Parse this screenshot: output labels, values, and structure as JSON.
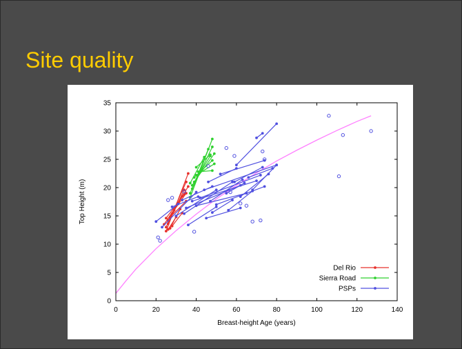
{
  "slide": {
    "title": "Site quality"
  },
  "chart_data": {
    "type": "scatter",
    "xlabel": "Breast-height Age (years)",
    "ylabel": "Top Height (m)",
    "xlim": [
      0,
      140
    ],
    "ylim": [
      0,
      35
    ],
    "x_ticks": [
      0,
      20,
      40,
      60,
      80,
      100,
      120,
      140
    ],
    "y_ticks": [
      0,
      5,
      10,
      15,
      20,
      25,
      30,
      35
    ],
    "grid": false,
    "legend_position": "bottom-right",
    "colors": {
      "Del Rio": "#e8312c",
      "Sierra Road": "#2fd12f",
      "PSPs": "#5050e0",
      "curve": "#ff80ff"
    },
    "curve": {
      "x": [
        0,
        5,
        10,
        20,
        30,
        40,
        50,
        60,
        70,
        80,
        90,
        100,
        110,
        120,
        127
      ],
      "y": [
        1.3,
        3.5,
        5.6,
        9.2,
        12.4,
        15.3,
        18.0,
        20.4,
        22.6,
        24.7,
        26.6,
        28.4,
        30.1,
        31.7,
        32.7
      ]
    },
    "series": [
      {
        "name": "Del Rio",
        "segments": [
          [
            [
              25,
              12.3
            ],
            [
              36,
              22.5
            ]
          ],
          [
            [
              25,
              13.0
            ],
            [
              35,
              21.0
            ]
          ],
          [
            [
              26,
              13.6
            ],
            [
              34,
              19.6
            ]
          ],
          [
            [
              26,
              14.2
            ],
            [
              33,
              18.5
            ]
          ],
          [
            [
              27,
              14.8
            ],
            [
              35,
              17.6
            ]
          ],
          [
            [
              27,
              12.8
            ],
            [
              32,
              16.2
            ]
          ],
          [
            [
              28,
              15.4
            ],
            [
              36,
              20.2
            ]
          ],
          [
            [
              24,
              13.5
            ],
            [
              31,
              17.2
            ]
          ],
          [
            [
              25,
              14.6
            ],
            [
              34,
              18.8
            ]
          ],
          [
            [
              28,
              13.2
            ],
            [
              33,
              15.5
            ]
          ],
          [
            [
              26,
              12.6
            ],
            [
              30,
              14.8
            ]
          ],
          [
            [
              29,
              16.0
            ],
            [
              35,
              19.0
            ]
          ]
        ]
      },
      {
        "name": "Sierra Road",
        "segments": [
          [
            [
              37,
              18.3
            ],
            [
              48,
              28.6
            ]
          ],
          [
            [
              37,
              19.0
            ],
            [
              46,
              26.8
            ]
          ],
          [
            [
              38,
              19.8
            ],
            [
              48,
              27.2
            ]
          ],
          [
            [
              38,
              20.4
            ],
            [
              47,
              25.6
            ]
          ],
          [
            [
              39,
              21.0
            ],
            [
              49,
              26.0
            ]
          ],
          [
            [
              39,
              21.8
            ],
            [
              48,
              24.8
            ]
          ],
          [
            [
              40,
              22.2
            ],
            [
              49,
              24.2
            ]
          ],
          [
            [
              41,
              22.8
            ],
            [
              48,
              23.0
            ]
          ],
          [
            [
              37,
              20.8
            ],
            [
              44,
              25.4
            ]
          ],
          [
            [
              40,
              23.6
            ],
            [
              47,
              25.8
            ]
          ]
        ]
      },
      {
        "name": "PSPs",
        "segments": [
          [
            [
              20,
              14.0
            ],
            [
              31,
              17.1
            ]
          ],
          [
            [
              23,
              13.0
            ],
            [
              40,
              19.2
            ]
          ],
          [
            [
              30,
              15.0
            ],
            [
              50,
              19.6
            ]
          ],
          [
            [
              34,
              15.4
            ],
            [
              58,
              21.0
            ]
          ],
          [
            [
              35,
              16.4
            ],
            [
              62,
              20.4
            ]
          ],
          [
            [
              38,
              17.6
            ],
            [
              70,
              21.2
            ]
          ],
          [
            [
              40,
              16.8
            ],
            [
              65,
              19.0
            ]
          ],
          [
            [
              42,
              18.2
            ],
            [
              72,
              22.2
            ]
          ],
          [
            [
              44,
              19.6
            ],
            [
              80,
              24.0
            ]
          ],
          [
            [
              45,
              14.6
            ],
            [
              62,
              16.4
            ]
          ],
          [
            [
              46,
              21.0
            ],
            [
              60,
              23.4
            ]
          ],
          [
            [
              48,
              15.6
            ],
            [
              58,
              17.8
            ]
          ],
          [
            [
              50,
              17.0
            ],
            [
              74,
              20.2
            ]
          ],
          [
            [
              52,
              22.4
            ],
            [
              74,
              24.8
            ]
          ],
          [
            [
              55,
              19.0
            ],
            [
              64,
              20.8
            ]
          ],
          [
            [
              60,
              24.0
            ],
            [
              80,
              31.3
            ]
          ],
          [
            [
              66,
              21.8
            ],
            [
              78,
              23.4
            ]
          ],
          [
            [
              68,
              19.6
            ],
            [
              80,
              24.0
            ]
          ],
          [
            [
              70,
              28.8
            ],
            [
              73,
              29.6
            ]
          ],
          [
            [
              36,
              13.4
            ],
            [
              50,
              16.6
            ]
          ],
          [
            [
              56,
              16.0
            ],
            [
              68,
              19.4
            ]
          ],
          [
            [
              28,
              16.6
            ],
            [
              41,
              18.4
            ]
          ],
          [
            [
              47,
              17.6
            ],
            [
              63,
              21.4
            ]
          ],
          [
            [
              59,
              21.0
            ],
            [
              73,
              23.6
            ]
          ],
          [
            [
              33,
              17.8
            ],
            [
              48,
              20.2
            ]
          ],
          [
            [
              62,
              18.4
            ],
            [
              76,
              22.4
            ]
          ]
        ],
        "points": [
          [
            21,
            11.2
          ],
          [
            22,
            10.6
          ],
          [
            26,
            17.8
          ],
          [
            28,
            18.2
          ],
          [
            34,
            19.3
          ],
          [
            39,
            12.2
          ],
          [
            55,
            27.0
          ],
          [
            57,
            19.2
          ],
          [
            59,
            25.6
          ],
          [
            62,
            17.2
          ],
          [
            68,
            14.0
          ],
          [
            72,
            14.2
          ],
          [
            73,
            26.4
          ],
          [
            74,
            25.0
          ],
          [
            106,
            32.7
          ],
          [
            111,
            22.0
          ],
          [
            113,
            29.3
          ],
          [
            127,
            30.0
          ],
          [
            46,
            23.8
          ],
          [
            65,
            16.8
          ]
        ]
      }
    ]
  }
}
